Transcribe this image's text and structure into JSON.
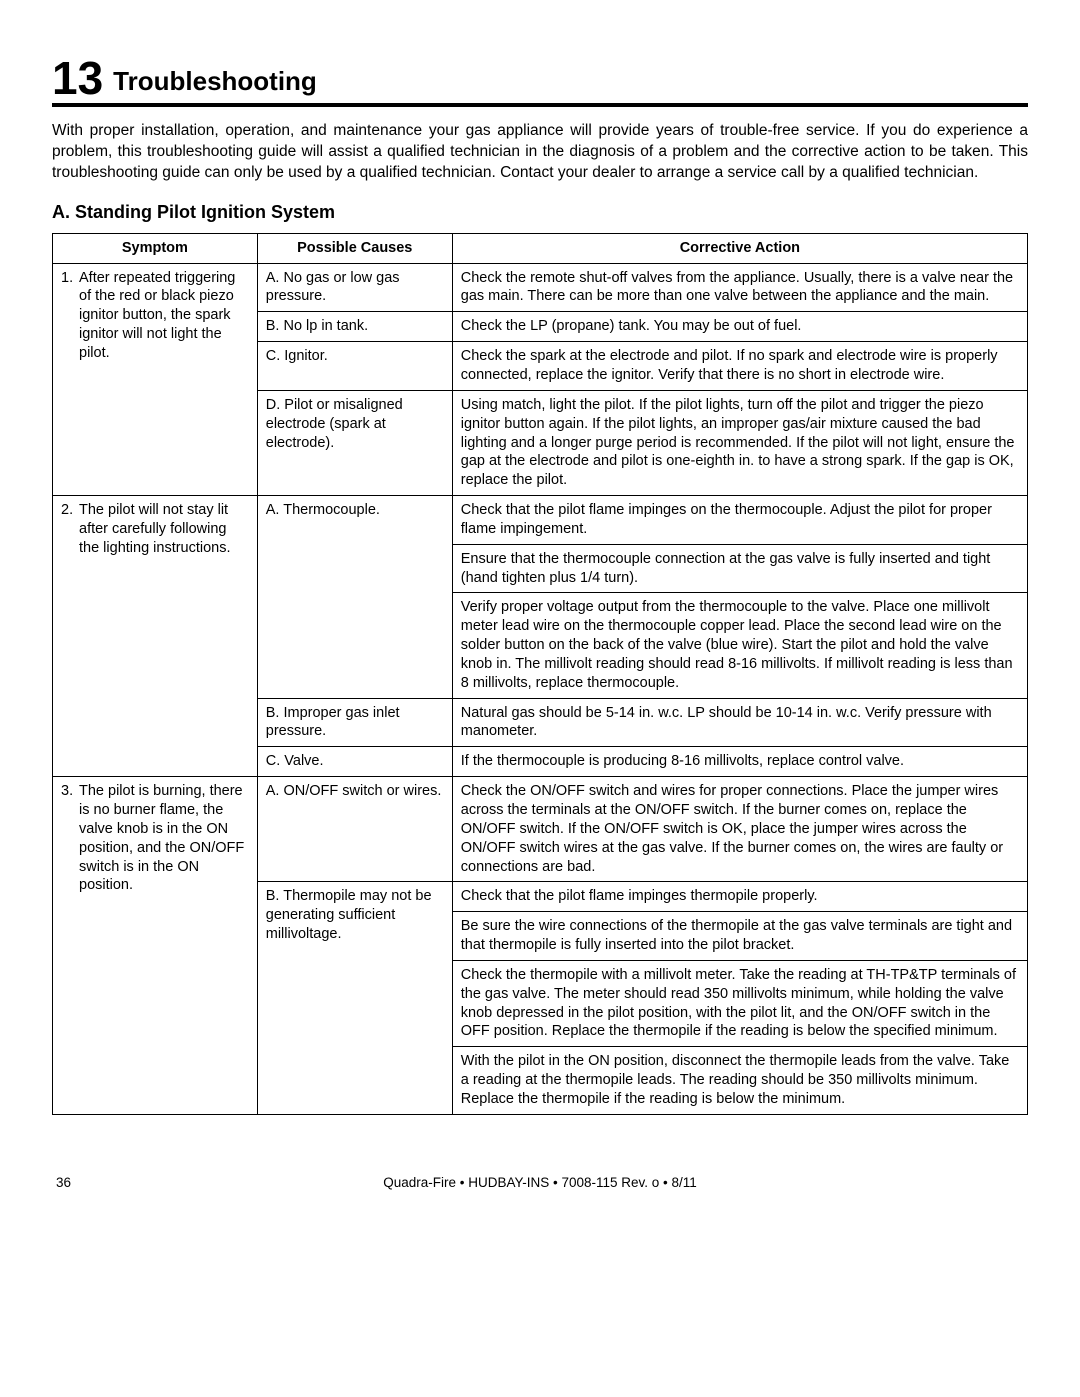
{
  "section": {
    "number": "13",
    "title": "Troubleshooting"
  },
  "intro": "With proper installation, operation, and maintenance your gas appliance will provide years of trouble-free service.  If you do experience a problem, this troubleshooting guide will assist a qualified technician in the diagnosis of a problem and the corrective action to be taken. This troubleshooting guide can only be used by a qualified technician.  Contact your dealer to arrange a service call by a qualified technician.",
  "subsection_title": "A.  Standing Pilot Ignition System",
  "headers": {
    "symptom": "Symptom",
    "causes": "Possible Causes",
    "action": "Corrective Action"
  },
  "rows": {
    "s1": {
      "num": "1.",
      "text": "After repeated triggering of the red or black piezo ignitor button, the spark ignitor will not light the pilot."
    },
    "s1c1": "A. No gas or low gas pressure.",
    "s1a1": "Check the remote shut-off valves from the appliance. Usually, there is a valve near the gas main. There can be more than one valve between the appliance and the main.",
    "s1c2": "B.  No lp in tank.",
    "s1a2": "Check the LP (propane) tank. You may be out of fuel.",
    "s1c3": "C. Ignitor.",
    "s1a3": "Check the spark at the electrode and pilot. If no spark and electrode wire is properly connected, replace the ignitor.  Verify that there is no short in electrode wire.",
    "s1c4": "D. Pilot or misaligned electrode (spark at electrode).",
    "s1a4": "Using match, light the pilot. If the pilot lights, turn off the pilot and trigger the piezo ignitor button again. If the pilot lights, an improper gas/air mixture caused the bad lighting and a longer purge period is recommended. If the pilot will not light, ensure the gap at the electrode and pilot is one-eighth in. to have a strong spark. If the gap is OK, replace the pilot.",
    "s2": {
      "num": "2.",
      "text": "The pilot will not stay lit after carefully following the lighting instructions."
    },
    "s2c1": "A. Thermocouple.",
    "s2a1a": "Check that the pilot flame impinges on the thermocouple. Adjust the pilot for proper flame impingement.",
    "s2a1b": "Ensure that the thermocouple connection at the gas valve is fully inserted and tight (hand tighten plus 1/4 turn).",
    "s2a1c": "Verify proper voltage output from the thermocouple to the valve.  Place one millivolt meter lead wire on the thermocouple copper lead. Place the second lead wire on the solder button on the back of the valve (blue wire).  Start the pilot and hold the valve knob in.  The millivolt reading should read 8-16 millivolts.  If millivolt reading is less than 8 millivolts, replace thermocouple.",
    "s2c2": "B.  Improper gas inlet pressure.",
    "s2a2": "Natural gas should be 5-14 in. w.c.  LP should be 10-14 in. w.c.  Verify pressure with manometer.",
    "s2c3": "C.  Valve.",
    "s2a3": "If the thermocouple is producing 8-16 millivolts, replace control valve.",
    "s3": {
      "num": "3.",
      "text": "The pilot is burning, there is no burner flame, the valve knob is in the ON position, and the ON/OFF switch is in the ON position."
    },
    "s3c1": "A. ON/OFF switch or wires.",
    "s3a1": "Check the ON/OFF switch and wires for proper connections. Place the jumper wires across the terminals at the ON/OFF switch. If the burner comes on, replace the ON/OFF switch. If the ON/OFF switch is OK, place the jumper wires across the ON/OFF switch wires at the gas valve. If the burner comes on, the wires are faulty or connections are bad.",
    "s3c2": "B. Thermopile may not be generating sufficient millivoltage.",
    "s3a2a": "Check that the pilot flame impinges thermopile properly.",
    "s3a2b": "Be sure the wire connections of the thermopile at the gas valve terminals are tight and that thermopile is fully inserted into the pilot bracket.",
    "s3a2c": "Check the thermopile with a millivolt meter. Take the reading at TH-TP&TP terminals of the gas valve. The meter should read 350 millivolts minimum, while holding the valve knob depressed in the pilot position, with the pilot lit, and the ON/OFF switch in the OFF position. Replace the thermopile if the reading is below the specified minimum.",
    "s3a2d": "With the pilot in the ON position, disconnect the thermopile leads from the valve. Take a reading at the thermopile leads. The reading should be 350 millivolts minimum. Replace the thermopile if the reading is below the minimum."
  },
  "footer": {
    "page": "36",
    "doc": "Quadra-Fire  • HUDBAY-INS  •  7008-115 Rev. o  • 8/11"
  }
}
